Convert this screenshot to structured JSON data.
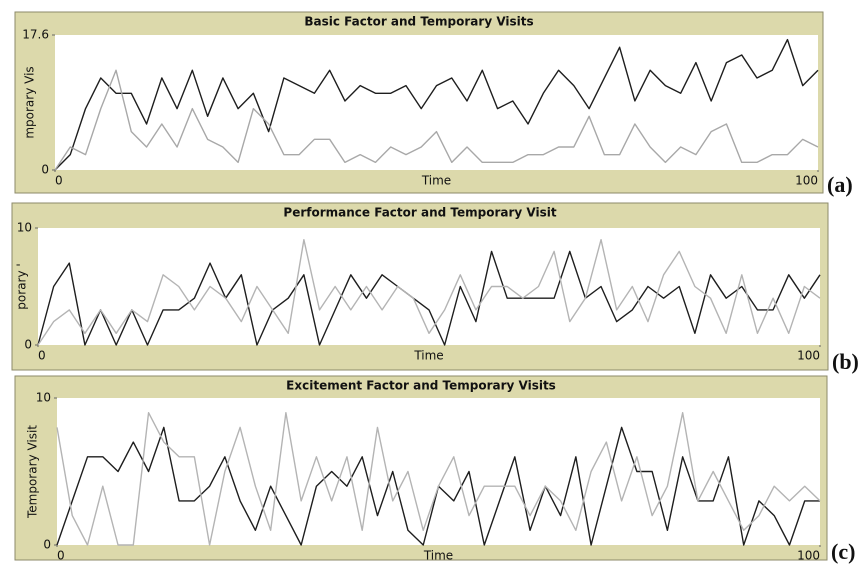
{
  "chart_data": [
    {
      "type": "line",
      "title": "Basic Factor and Temporary Visits",
      "x_label": "Time",
      "y_label": "mporary Vis",
      "panel_label": "(a)",
      "xlim": [
        0,
        100
      ],
      "ylim": [
        0,
        17.6
      ],
      "xticks": [
        0,
        100
      ],
      "yticks": [
        0,
        17.6
      ],
      "x": [
        0,
        2,
        4,
        6,
        8,
        10,
        12,
        14,
        16,
        18,
        20,
        22,
        24,
        26,
        28,
        30,
        32,
        34,
        36,
        38,
        40,
        42,
        44,
        46,
        48,
        50,
        52,
        54,
        56,
        58,
        60,
        62,
        64,
        66,
        68,
        70,
        72,
        74,
        76,
        78,
        80,
        82,
        84,
        86,
        88,
        90,
        92,
        94,
        96,
        98,
        100
      ],
      "series": [
        {
          "color": "#1e1e1e",
          "values": [
            0,
            2,
            8,
            12,
            10,
            10,
            6,
            12,
            8,
            13,
            7,
            12,
            8,
            10,
            5,
            12,
            11,
            10,
            13,
            9,
            11,
            10,
            10,
            11,
            8,
            11,
            12,
            9,
            13,
            8,
            9,
            6,
            10,
            13,
            11,
            8,
            12,
            16,
            9,
            13,
            11,
            10,
            14,
            9,
            14,
            15,
            12,
            13,
            17,
            11,
            13
          ]
        },
        {
          "color": "#a8a8a8",
          "values": [
            0,
            3,
            2,
            8,
            13,
            5,
            3,
            6,
            3,
            8,
            4,
            3,
            1,
            8,
            6,
            2,
            2,
            4,
            4,
            1,
            2,
            1,
            3,
            2,
            3,
            5,
            1,
            3,
            1,
            1,
            1,
            2,
            2,
            3,
            3,
            7,
            2,
            2,
            6,
            3,
            1,
            3,
            2,
            5,
            6,
            1,
            1,
            2,
            2,
            4,
            3
          ]
        }
      ]
    },
    {
      "type": "line",
      "title": "Performance Factor and Temporary Visit",
      "x_label": "Time",
      "y_label": "porary '",
      "panel_label": "(b)",
      "xlim": [
        0,
        100
      ],
      "ylim": [
        0,
        10
      ],
      "xticks": [
        0,
        100
      ],
      "yticks": [
        0,
        10
      ],
      "x": [
        0,
        2,
        4,
        6,
        8,
        10,
        12,
        14,
        16,
        18,
        20,
        22,
        24,
        26,
        28,
        30,
        32,
        34,
        36,
        38,
        40,
        42,
        44,
        46,
        48,
        50,
        52,
        54,
        56,
        58,
        60,
        62,
        64,
        66,
        68,
        70,
        72,
        74,
        76,
        78,
        80,
        82,
        84,
        86,
        88,
        90,
        92,
        94,
        96,
        98,
        100
      ],
      "series": [
        {
          "color": "#1e1e1e",
          "values": [
            0,
            5,
            7,
            0,
            3,
            0,
            3,
            0,
            3,
            3,
            4,
            7,
            4,
            6,
            0,
            3,
            4,
            6,
            0,
            3,
            6,
            4,
            6,
            5,
            4,
            3,
            0,
            5,
            2,
            8,
            4,
            4,
            4,
            4,
            8,
            4,
            5,
            2,
            3,
            5,
            4,
            5,
            1,
            6,
            4,
            5,
            3,
            3,
            6,
            4,
            6
          ]
        },
        {
          "color": "#b4b4b4",
          "values": [
            0,
            2,
            3,
            1,
            3,
            1,
            3,
            2,
            6,
            5,
            3,
            5,
            4,
            2,
            5,
            3,
            1,
            9,
            3,
            5,
            3,
            5,
            3,
            5,
            4,
            1,
            3,
            6,
            3,
            5,
            5,
            4,
            5,
            8,
            2,
            4,
            9,
            3,
            5,
            2,
            6,
            8,
            5,
            4,
            1,
            6,
            1,
            4,
            1,
            5,
            4
          ]
        }
      ]
    },
    {
      "type": "line",
      "title": "Excitement Factor and Temporary Visits",
      "x_label": "Time",
      "y_label": "Temporary Visit",
      "panel_label": "(c)",
      "xlim": [
        0,
        100
      ],
      "ylim": [
        0,
        10
      ],
      "xticks": [
        0,
        100
      ],
      "yticks": [
        0,
        10
      ],
      "x": [
        0,
        2,
        4,
        6,
        8,
        10,
        12,
        14,
        16,
        18,
        20,
        22,
        24,
        26,
        28,
        30,
        32,
        34,
        36,
        38,
        40,
        42,
        44,
        46,
        48,
        50,
        52,
        54,
        56,
        58,
        60,
        62,
        64,
        66,
        68,
        70,
        72,
        74,
        76,
        78,
        80,
        82,
        84,
        86,
        88,
        90,
        92,
        94,
        96,
        98,
        100
      ],
      "series": [
        {
          "color": "#1e1e1e",
          "values": [
            0,
            3,
            6,
            6,
            5,
            7,
            5,
            8,
            3,
            3,
            4,
            6,
            3,
            1,
            4,
            2,
            0,
            4,
            5,
            4,
            6,
            2,
            5,
            1,
            0,
            4,
            3,
            5,
            0,
            3,
            6,
            1,
            4,
            2,
            6,
            0,
            4,
            8,
            5,
            5,
            1,
            6,
            3,
            3,
            6,
            0,
            3,
            2,
            0,
            3,
            3
          ]
        },
        {
          "color": "#b4b4b4",
          "values": [
            8,
            2,
            0,
            4,
            0,
            0,
            9,
            7,
            6,
            6,
            0,
            5,
            8,
            4,
            1,
            9,
            3,
            6,
            3,
            6,
            1,
            8,
            3,
            5,
            1,
            4,
            6,
            2,
            4,
            4,
            4,
            2,
            4,
            3,
            1,
            5,
            7,
            3,
            6,
            2,
            4,
            9,
            3,
            5,
            3,
            1,
            2,
            4,
            3,
            4,
            3
          ]
        }
      ]
    }
  ]
}
